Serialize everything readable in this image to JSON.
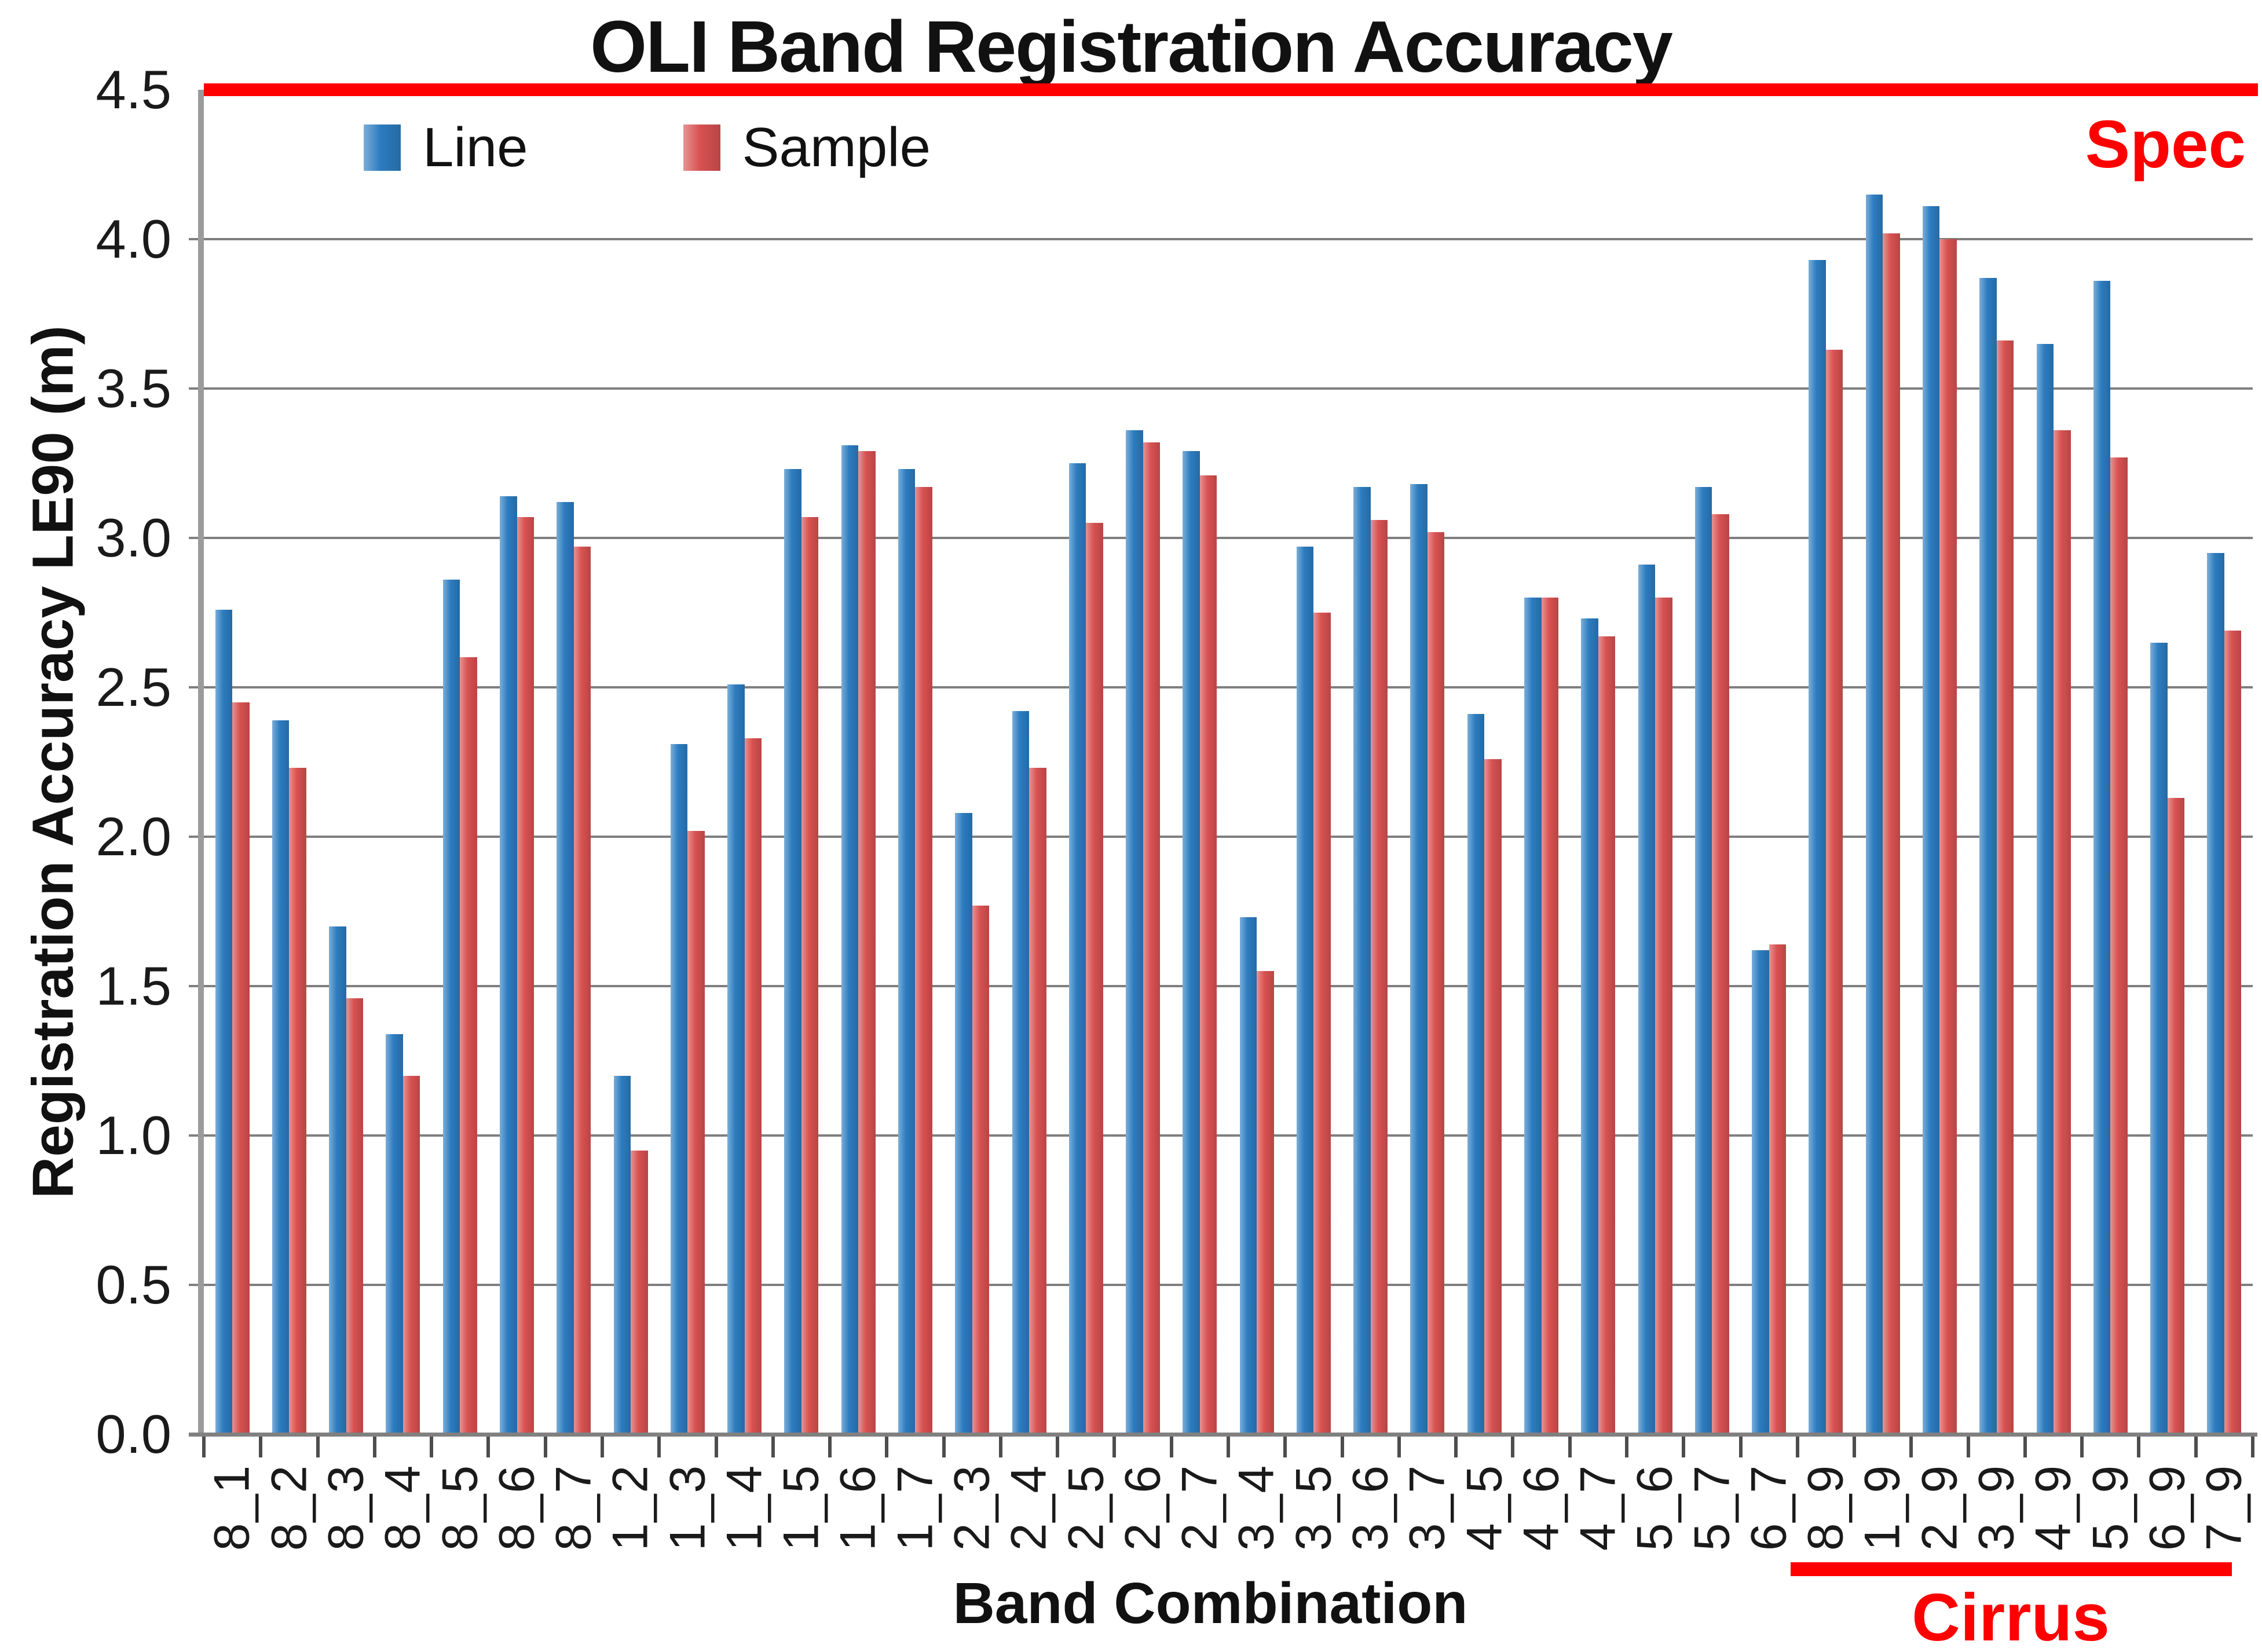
{
  "chart_data": {
    "type": "bar",
    "title": "OLI Band Registration Accuracy",
    "xlabel": "Band Combination",
    "ylabel": "Registration Accuracy LE90 (m)",
    "ylim": [
      0,
      4.5
    ],
    "ytick_step": 0.5,
    "ytick_labels": [
      "4.5",
      "4.0",
      "3.5",
      "3.0",
      "2.5",
      "2.0",
      "1.5",
      "1.0",
      "0.5",
      "0.0"
    ],
    "grid": "horizontal",
    "legend_position": "top-left-inside",
    "categories": [
      "8_1",
      "8_2",
      "8_3",
      "8_4",
      "8_5",
      "8_6",
      "8_7",
      "1_2",
      "1_3",
      "1_4",
      "1_5",
      "1_6",
      "1_7",
      "2_3",
      "2_4",
      "2_5",
      "2_6",
      "2_7",
      "3_4",
      "3_5",
      "3_6",
      "3_7",
      "4_5",
      "4_6",
      "4_7",
      "5_6",
      "5_7",
      "6_7",
      "8_9",
      "1_9",
      "2_9",
      "3_9",
      "4_9",
      "5_9",
      "6_9",
      "7_9"
    ],
    "series": [
      {
        "name": "Line",
        "color": "#2c7cc0",
        "values": [
          2.76,
          2.39,
          1.7,
          1.34,
          2.86,
          3.14,
          3.12,
          1.2,
          2.31,
          2.51,
          3.23,
          3.31,
          3.23,
          2.08,
          2.42,
          3.25,
          3.36,
          3.29,
          1.73,
          2.97,
          3.17,
          3.18,
          2.41,
          2.8,
          2.73,
          2.91,
          3.17,
          1.62,
          3.93,
          4.15,
          4.11,
          3.87,
          3.65,
          3.86,
          2.65,
          2.95
        ]
      },
      {
        "name": "Sample",
        "color": "#d85151",
        "values": [
          2.45,
          2.23,
          1.46,
          1.2,
          2.6,
          3.07,
          2.97,
          0.95,
          2.02,
          2.33,
          3.07,
          3.29,
          3.17,
          1.77,
          2.23,
          3.05,
          3.32,
          3.21,
          1.55,
          2.75,
          3.06,
          3.02,
          2.26,
          2.8,
          2.67,
          2.8,
          3.08,
          1.64,
          3.63,
          4.02,
          4.0,
          3.66,
          3.36,
          3.27,
          2.13,
          2.69
        ]
      }
    ],
    "annotations": {
      "spec_line": {
        "y": 4.5,
        "label": "Spec",
        "color": "#ff0000"
      },
      "cirrus_underline": {
        "from_category": "8_9",
        "to_category": "7_9",
        "label": "Cirrus",
        "color": "#ff0000"
      }
    },
    "gridline_color": "#7f7f7f",
    "axis_color": "#808080"
  }
}
